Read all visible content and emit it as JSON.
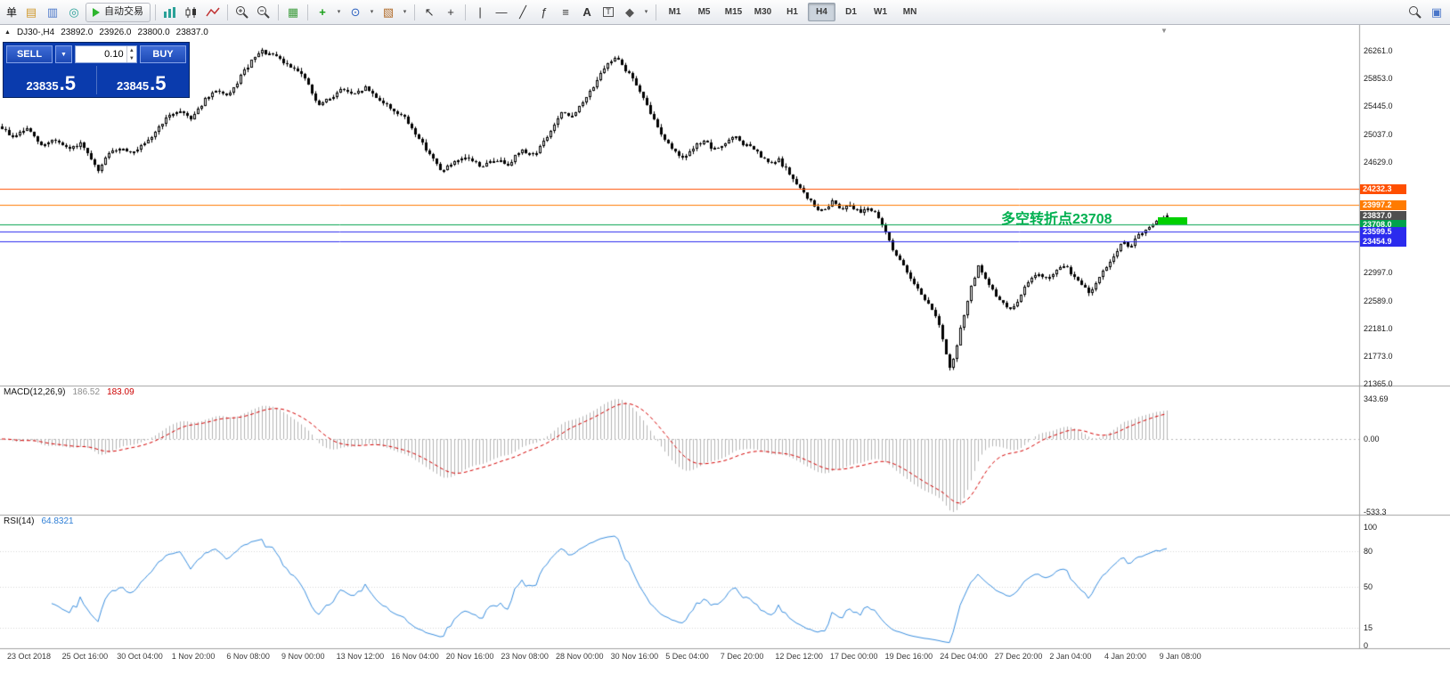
{
  "toolbar": {
    "menu_text": "单",
    "items": [
      {
        "kind": "text",
        "name": "menu-item-label",
        "label": "单"
      },
      {
        "kind": "glyph",
        "name": "new-order-icon",
        "glyph": "▤",
        "color": "#d09a30"
      },
      {
        "kind": "glyph",
        "name": "market-watch-icon",
        "glyph": "▥",
        "color": "#4a76c9"
      },
      {
        "kind": "glyph",
        "name": "data-window-icon",
        "glyph": "◎",
        "color": "#2aa198"
      },
      {
        "kind": "autotrade",
        "name": "autotrading-button",
        "label": "自动交易"
      },
      {
        "kind": "sep"
      },
      {
        "kind": "bars3",
        "name": "bar-chart-type-icon"
      },
      {
        "kind": "candle2",
        "name": "candlestick-type-icon"
      },
      {
        "kind": "zigzag",
        "name": "line-chart-type-icon"
      },
      {
        "kind": "sep"
      },
      {
        "kind": "zoomin",
        "name": "zoom-in-icon"
      },
      {
        "kind": "zoomout",
        "name": "zoom-out-icon"
      },
      {
        "kind": "sep"
      },
      {
        "kind": "glyph",
        "name": "tile-windows-icon",
        "glyph": "▦",
        "color": "#3f9d3f"
      },
      {
        "kind": "sep"
      },
      {
        "kind": "glyph",
        "name": "indicators-icon",
        "glyph": "+",
        "color": "#18a018",
        "bold": true
      },
      {
        "kind": "caret",
        "name": "indicators-caret"
      },
      {
        "kind": "glyph",
        "name": "periods-icon",
        "glyph": "⊙",
        "color": "#2d62c0"
      },
      {
        "kind": "caret",
        "name": "periods-caret"
      },
      {
        "kind": "glyph",
        "name": "templates-icon",
        "glyph": "▧",
        "color": "#b06a28"
      },
      {
        "kind": "caret",
        "name": "templates-caret"
      },
      {
        "kind": "sep"
      },
      {
        "kind": "glyph",
        "name": "cursor-icon",
        "glyph": "↖",
        "color": "#333333"
      },
      {
        "kind": "glyph",
        "name": "crosshair-icon",
        "glyph": "+",
        "color": "#333333"
      },
      {
        "kind": "sep"
      },
      {
        "kind": "glyph",
        "name": "vertical-line-icon",
        "glyph": "|",
        "color": "#333333"
      },
      {
        "kind": "glyph",
        "name": "horizontal-line-icon",
        "glyph": "—",
        "color": "#333333"
      },
      {
        "kind": "glyph",
        "name": "trendline-icon",
        "glyph": "╱",
        "color": "#333333"
      },
      {
        "kind": "glyph",
        "name": "fibonacci-icon",
        "glyph": "ƒ",
        "color": "#333333"
      },
      {
        "kind": "glyph",
        "name": "equidistant-channel-icon",
        "glyph": "≡",
        "color": "#333333"
      },
      {
        "kind": "glyph",
        "name": "text-icon",
        "glyph": "A",
        "color": "#333333",
        "bold": true
      },
      {
        "kind": "tbox",
        "name": "text-label-icon",
        "label": "T"
      },
      {
        "kind": "glyph",
        "name": "arrows-icon",
        "glyph": "◆",
        "color": "#555555"
      },
      {
        "kind": "caret",
        "name": "arrows-caret"
      },
      {
        "kind": "sep"
      }
    ],
    "timeframes": {
      "list": [
        "M1",
        "M5",
        "M15",
        "M30",
        "H1",
        "H4",
        "D1",
        "W1",
        "MN"
      ],
      "active": "H4"
    },
    "right_items": [
      {
        "kind": "zoomplain",
        "name": "search-icon"
      },
      {
        "kind": "glyph",
        "name": "new-chart-window-icon",
        "glyph": "▣",
        "color": "#4a76c9"
      }
    ]
  },
  "chart": {
    "symbol_period": "DJ30-,H4",
    "open": "23892.0",
    "high": "23926.0",
    "low": "23800.0",
    "close": "23837.0",
    "trade_panel": {
      "sell_label": "SELL",
      "buy_label": "BUY",
      "lot_value": "0.10",
      "sell_price_int": "23835",
      "sell_price_frac": ".5",
      "buy_price_int": "23845",
      "buy_price_frac": ".5"
    },
    "annotation": {
      "text": "多空转折点23708",
      "price": 23708.0,
      "color": "#00b050",
      "dash_color": "#00d000"
    }
  },
  "indicators": {
    "macd": {
      "label": "MACD(12,26,9)",
      "main_value": "186.52",
      "signal_value": "183.09",
      "scale": {
        "top": "343.69",
        "zero": "0.00",
        "bottom": "-533.3"
      },
      "hist_color": "#b4b4b4",
      "signal_color": "#d40000"
    },
    "rsi": {
      "label": "RSI(14)",
      "value": "64.8321",
      "line_color": "#3a8ede",
      "scale_ticks": [
        100,
        80,
        50,
        15,
        0
      ],
      "level_lines": [
        80,
        50,
        15
      ]
    }
  },
  "chart_data": {
    "type": "candlestick",
    "symbol": "DJ30-",
    "timeframe": "H4",
    "ohlc_current": {
      "open": 23892.0,
      "high": 23926.0,
      "low": 23800.0,
      "close": 23837.0
    },
    "price_axis": {
      "max": 26261.0,
      "min": 21365.0,
      "ticks": [
        26261.0,
        25853.0,
        25445.0,
        25037.0,
        24629.0,
        22997.0,
        22589.0,
        22181.0,
        21773.0,
        21365.0
      ]
    },
    "levels": [
      {
        "price": 24232.3,
        "label": "24232.3",
        "color": "#ff4f00",
        "line": true
      },
      {
        "price": 23997.2,
        "label": "23997.2",
        "color": "#ff7b00",
        "line": true
      },
      {
        "price": 23837.0,
        "label": "23837.0",
        "color": "#4f4f4f",
        "line": false
      },
      {
        "price": 23708.0,
        "label": "23708.0",
        "color": "#00a24d",
        "line": true
      },
      {
        "price": 23599.5,
        "label": "23599.5",
        "color": "#2b2bee",
        "line": true
      },
      {
        "price": 23454.9,
        "label": "23454.9",
        "color": "#2b2bee",
        "line": true
      }
    ],
    "noise_seed": 9,
    "candle_up_color": "#ffffff",
    "candle_down_color": "#000000",
    "close_anchors": [
      [
        0,
        25150
      ],
      [
        14,
        24990
      ],
      [
        30,
        25120
      ],
      [
        46,
        24860
      ],
      [
        60,
        24960
      ],
      [
        76,
        24810
      ],
      [
        90,
        24890
      ],
      [
        104,
        24620
      ],
      [
        110,
        24470
      ],
      [
        118,
        24700
      ],
      [
        134,
        24840
      ],
      [
        150,
        24760
      ],
      [
        166,
        24930
      ],
      [
        184,
        25240
      ],
      [
        200,
        25390
      ],
      [
        214,
        25270
      ],
      [
        230,
        25540
      ],
      [
        244,
        25690
      ],
      [
        256,
        25570
      ],
      [
        270,
        25890
      ],
      [
        284,
        26140
      ],
      [
        294,
        26250
      ],
      [
        310,
        26170
      ],
      [
        322,
        26050
      ],
      [
        334,
        25990
      ],
      [
        346,
        25760
      ],
      [
        356,
        25450
      ],
      [
        370,
        25560
      ],
      [
        384,
        25710
      ],
      [
        396,
        25600
      ],
      [
        410,
        25720
      ],
      [
        424,
        25560
      ],
      [
        438,
        25410
      ],
      [
        452,
        25300
      ],
      [
        468,
        25010
      ],
      [
        484,
        24710
      ],
      [
        494,
        24500
      ],
      [
        510,
        24610
      ],
      [
        524,
        24700
      ],
      [
        540,
        24560
      ],
      [
        556,
        24660
      ],
      [
        570,
        24600
      ],
      [
        584,
        24790
      ],
      [
        600,
        24740
      ],
      [
        614,
        25000
      ],
      [
        630,
        25340
      ],
      [
        640,
        25290
      ],
      [
        654,
        25490
      ],
      [
        670,
        25840
      ],
      [
        684,
        26090
      ],
      [
        692,
        26200
      ],
      [
        700,
        26010
      ],
      [
        710,
        25860
      ],
      [
        720,
        25600
      ],
      [
        730,
        25340
      ],
      [
        740,
        25090
      ],
      [
        750,
        24890
      ],
      [
        760,
        24740
      ],
      [
        770,
        24700
      ],
      [
        780,
        24860
      ],
      [
        790,
        24950
      ],
      [
        800,
        24800
      ],
      [
        814,
        24900
      ],
      [
        824,
        25000
      ],
      [
        834,
        24890
      ],
      [
        844,
        24840
      ],
      [
        854,
        24700
      ],
      [
        864,
        24590
      ],
      [
        874,
        24650
      ],
      [
        884,
        24490
      ],
      [
        894,
        24290
      ],
      [
        904,
        24140
      ],
      [
        914,
        23970
      ],
      [
        924,
        23890
      ],
      [
        934,
        24060
      ],
      [
        944,
        23940
      ],
      [
        954,
        24010
      ],
      [
        964,
        23890
      ],
      [
        974,
        23960
      ],
      [
        984,
        23840
      ],
      [
        994,
        23590
      ],
      [
        1004,
        23290
      ],
      [
        1014,
        23090
      ],
      [
        1024,
        22890
      ],
      [
        1034,
        22690
      ],
      [
        1044,
        22490
      ],
      [
        1052,
        22340
      ],
      [
        1060,
        21890
      ],
      [
        1066,
        21580
      ],
      [
        1072,
        21810
      ],
      [
        1080,
        22290
      ],
      [
        1090,
        22790
      ],
      [
        1098,
        23090
      ],
      [
        1106,
        22890
      ],
      [
        1116,
        22690
      ],
      [
        1126,
        22540
      ],
      [
        1136,
        22440
      ],
      [
        1146,
        22690
      ],
      [
        1156,
        22890
      ],
      [
        1166,
        22990
      ],
      [
        1176,
        22890
      ],
      [
        1186,
        23040
      ],
      [
        1196,
        23090
      ],
      [
        1206,
        22940
      ],
      [
        1216,
        22790
      ],
      [
        1224,
        22690
      ],
      [
        1232,
        22890
      ],
      [
        1242,
        23090
      ],
      [
        1252,
        23290
      ],
      [
        1260,
        23440
      ],
      [
        1268,
        23390
      ],
      [
        1278,
        23540
      ],
      [
        1288,
        23640
      ],
      [
        1298,
        23740
      ],
      [
        1308,
        23830
      ],
      [
        1315,
        23837
      ]
    ],
    "macd_params": [
      12,
      26,
      9
    ],
    "rsi_period": 14,
    "time_labels": [
      "23 Oct 2018",
      "25 Oct 16:00",
      "30 Oct 04:00",
      "1 Nov 20:00",
      "6 Nov 08:00",
      "9 Nov 00:00",
      "13 Nov 12:00",
      "16 Nov 04:00",
      "20 Nov 16:00",
      "23 Nov 08:00",
      "28 Nov 00:00",
      "30 Nov 16:00",
      "5 Dec 04:00",
      "7 Dec 20:00",
      "12 Dec 12:00",
      "17 Dec 00:00",
      "19 Dec 16:00",
      "24 Dec 04:00",
      "27 Dec 20:00",
      "2 Jan 04:00",
      "4 Jan 20:00",
      "9 Jan 08:00"
    ]
  }
}
